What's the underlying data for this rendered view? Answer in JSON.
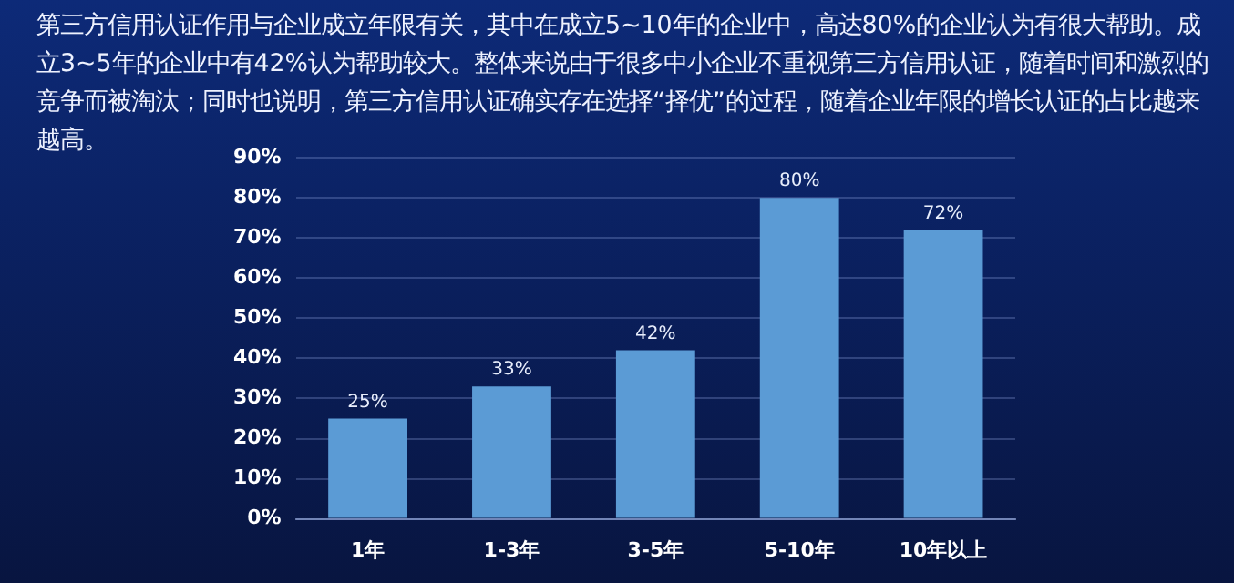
{
  "chart_data": {
    "type": "bar",
    "subtitle": "第三方信用认证作用与企业成立年限有关，其中在成立5~10年的企业中，高达80%的企业认为有很大帮助。成立3~5年的企业中有42%认为帮助较大。整体来说由于很多中小企业不重视第三方信用认证，随着时间和激烈的竞争而被淘汰；同时也说明，第三方信用认证确实存在选择“择优”的过程，随着企业年限的增长认证的占比越来越高。",
    "categories": [
      "1年",
      "1-3年",
      "3-5年",
      "5-10年",
      "10年以上"
    ],
    "values": [
      25,
      33,
      42,
      80,
      72
    ],
    "value_labels": [
      "25%",
      "33%",
      "42%",
      "80%",
      "72%"
    ],
    "color": "#5b9bd5",
    "ylim": [
      0,
      90
    ],
    "yticks": [
      {
        "value": 0,
        "label": "0%"
      },
      {
        "value": 10,
        "label": "10%"
      },
      {
        "value": 20,
        "label": "20%"
      },
      {
        "value": 30,
        "label": "30%"
      },
      {
        "value": 40,
        "label": "40%"
      },
      {
        "value": 50,
        "label": "50%"
      },
      {
        "value": 60,
        "label": "60%"
      },
      {
        "value": 70,
        "label": "70%"
      },
      {
        "value": 80,
        "label": "80%"
      },
      {
        "value": 90,
        "label": "90%"
      }
    ],
    "grid": "y"
  }
}
